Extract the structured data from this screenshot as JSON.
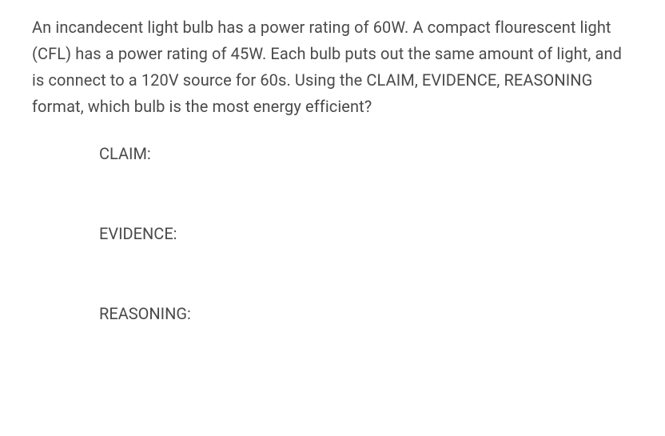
{
  "question": {
    "text": "An incandecent light bulb has a power rating of 60W. A compact flourescent light (CFL) has a power rating of 45W. Each bulb puts out the same amount of light, and is connect to a 120V source for 60s. Using the CLAIM, EVIDENCE, REASONING format, which bulb is the most energy efficient?"
  },
  "prompts": {
    "claim_label": "CLAIM:",
    "evidence_label": "EVIDENCE:",
    "reasoning_label": "REASONING:"
  },
  "style": {
    "text_color": "#4a4a4a",
    "background_color": "#ffffff",
    "question_fontsize": 20,
    "prompt_fontsize": 20
  }
}
